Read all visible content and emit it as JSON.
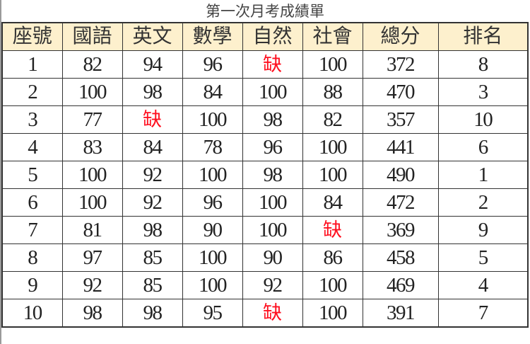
{
  "title": "第一次月考成績單",
  "absent_color": "#ff1020",
  "header_color": "#fdf0cd",
  "headers": [
    "座號",
    "國語",
    "英文",
    "數學",
    "自然",
    "社會",
    "總分",
    "排名"
  ],
  "rows": [
    [
      "1",
      "82",
      "94",
      "96",
      "缺",
      "100",
      "372",
      "8"
    ],
    [
      "2",
      "100",
      "98",
      "84",
      "100",
      "88",
      "470",
      "3"
    ],
    [
      "3",
      "77",
      "缺",
      "100",
      "98",
      "82",
      "357",
      "10"
    ],
    [
      "4",
      "83",
      "84",
      "78",
      "96",
      "100",
      "441",
      "6"
    ],
    [
      "5",
      "100",
      "92",
      "100",
      "98",
      "100",
      "490",
      "1"
    ],
    [
      "6",
      "100",
      "92",
      "96",
      "100",
      "84",
      "472",
      "2"
    ],
    [
      "7",
      "81",
      "98",
      "90",
      "100",
      "缺",
      "369",
      "9"
    ],
    [
      "8",
      "97",
      "85",
      "100",
      "90",
      "86",
      "458",
      "5"
    ],
    [
      "9",
      "92",
      "85",
      "100",
      "92",
      "100",
      "469",
      "4"
    ],
    [
      "10",
      "98",
      "98",
      "95",
      "缺",
      "100",
      "391",
      "7"
    ]
  ]
}
